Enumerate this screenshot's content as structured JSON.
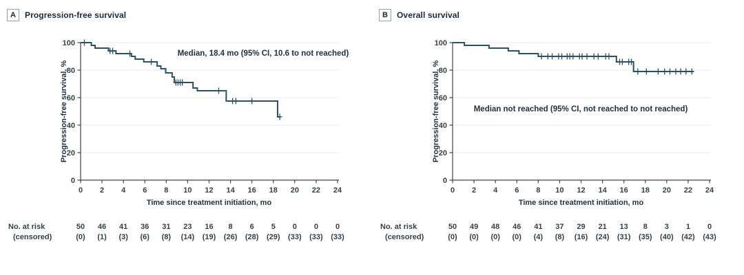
{
  "figure": {
    "risk_header_line1": "No. at risk",
    "risk_header_line2": "(censored)"
  },
  "colors": {
    "curve": "#2d4f63",
    "grid": "#ebebeb",
    "axis": "#3a454e",
    "tick_text": "#333f49",
    "heading_text": "#16293c"
  },
  "chart_data": [
    {
      "type": "line",
      "subtype": "kaplan-meier-step",
      "panel_label": "A",
      "title": "Progression-free survival",
      "annotation": "Median, 18.4 mo (95% CI, 10.6 to not reached)",
      "xlabel": "Time since treatment initiation, mo",
      "ylabel": "Progression-free survival, %",
      "xlim": [
        0,
        24
      ],
      "ylim": [
        0,
        100
      ],
      "xticks": [
        0,
        2,
        4,
        6,
        8,
        10,
        12,
        14,
        16,
        18,
        20,
        22,
        24
      ],
      "yticks": [
        0,
        20,
        40,
        60,
        80,
        100
      ],
      "grid": "horizontal",
      "legend": "none",
      "steps": [
        [
          0,
          100
        ],
        [
          1.0,
          98
        ],
        [
          1.35,
          96
        ],
        [
          2.6,
          94
        ],
        [
          3.3,
          92
        ],
        [
          4.75,
          90
        ],
        [
          5.1,
          88
        ],
        [
          5.9,
          86
        ],
        [
          7.15,
          83
        ],
        [
          7.5,
          81
        ],
        [
          7.95,
          78
        ],
        [
          8.55,
          75
        ],
        [
          8.75,
          71
        ],
        [
          10.5,
          67
        ],
        [
          10.9,
          65
        ],
        [
          13.6,
          57.5
        ],
        [
          18.4,
          46
        ]
      ],
      "end_time": 18.7,
      "censors": [
        [
          0.35,
          100
        ],
        [
          2.75,
          94
        ],
        [
          3.0,
          94
        ],
        [
          4.6,
          92
        ],
        [
          6.6,
          86
        ],
        [
          8.9,
          71
        ],
        [
          9.1,
          71
        ],
        [
          9.3,
          71
        ],
        [
          9.5,
          71
        ],
        [
          12.9,
          65
        ],
        [
          14.2,
          57.5
        ],
        [
          14.5,
          57.5
        ],
        [
          16.0,
          57.5
        ],
        [
          18.6,
          46
        ]
      ],
      "risk_times": [
        0,
        2,
        4,
        6,
        8,
        10,
        12,
        14,
        16,
        18,
        20,
        22,
        24
      ],
      "at_risk": [
        50,
        46,
        41,
        36,
        31,
        23,
        16,
        8,
        6,
        5,
        0,
        0,
        0
      ],
      "censored": [
        0,
        1,
        3,
        6,
        8,
        14,
        19,
        26,
        28,
        29,
        33,
        33,
        33
      ]
    },
    {
      "type": "line",
      "subtype": "kaplan-meier-step",
      "panel_label": "B",
      "title": "Overall survival",
      "annotation": "Median not reached (95% CI, not reached to not reached)",
      "xlabel": "Time since treatment initiation, mo",
      "ylabel": "Progression-free survival, %",
      "xlim": [
        0,
        24
      ],
      "ylim": [
        0,
        100
      ],
      "xticks": [
        0,
        2,
        4,
        6,
        8,
        10,
        12,
        14,
        16,
        18,
        20,
        22,
        24
      ],
      "yticks": [
        0,
        20,
        40,
        60,
        80,
        100
      ],
      "grid": "horizontal",
      "legend": "none",
      "steps": [
        [
          0,
          100
        ],
        [
          1.1,
          98
        ],
        [
          3.4,
          96
        ],
        [
          5.2,
          94
        ],
        [
          6.2,
          92
        ],
        [
          8.0,
          90
        ],
        [
          15.3,
          86
        ],
        [
          16.9,
          79
        ]
      ],
      "end_time": 22.5,
      "censors": [
        [
          8.3,
          90
        ],
        [
          8.9,
          90
        ],
        [
          9.3,
          90
        ],
        [
          9.9,
          90
        ],
        [
          10.2,
          90
        ],
        [
          10.7,
          90
        ],
        [
          10.95,
          90
        ],
        [
          11.25,
          90
        ],
        [
          11.85,
          90
        ],
        [
          12.1,
          90
        ],
        [
          12.55,
          90
        ],
        [
          13.2,
          90
        ],
        [
          13.6,
          90
        ],
        [
          14.3,
          90
        ],
        [
          14.6,
          90
        ],
        [
          15.6,
          86
        ],
        [
          15.85,
          86
        ],
        [
          16.45,
          86
        ],
        [
          16.7,
          86
        ],
        [
          17.3,
          79
        ],
        [
          18.1,
          79
        ],
        [
          19.2,
          79
        ],
        [
          19.8,
          79
        ],
        [
          20.3,
          79
        ],
        [
          20.85,
          79
        ],
        [
          21.3,
          79
        ],
        [
          21.8,
          79
        ],
        [
          22.35,
          79
        ]
      ],
      "risk_times": [
        0,
        2,
        4,
        6,
        8,
        10,
        12,
        14,
        16,
        18,
        20,
        22,
        24
      ],
      "at_risk": [
        50,
        49,
        48,
        46,
        41,
        37,
        29,
        21,
        13,
        8,
        3,
        1,
        0
      ],
      "censored": [
        0,
        0,
        0,
        0,
        4,
        8,
        16,
        24,
        31,
        35,
        40,
        42,
        43
      ]
    }
  ]
}
